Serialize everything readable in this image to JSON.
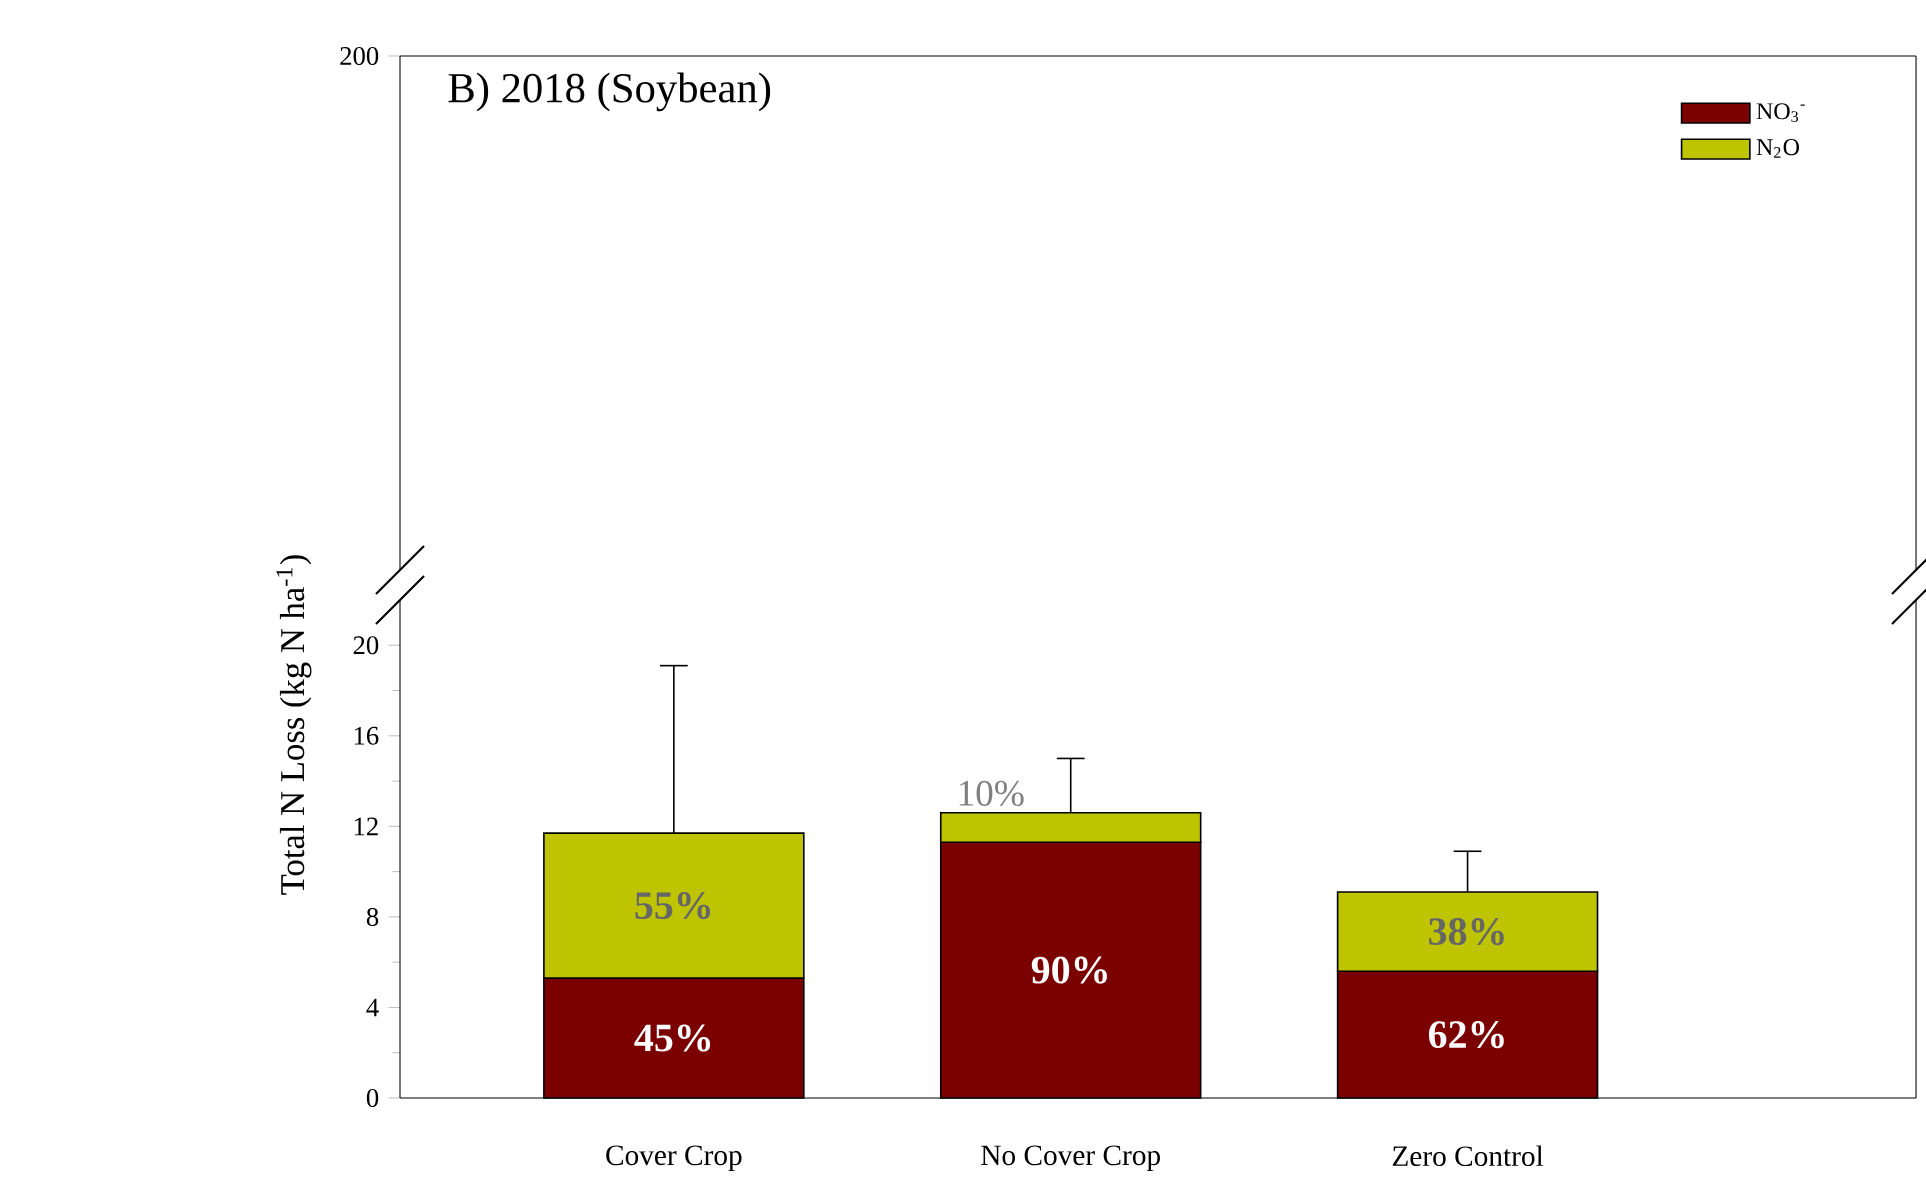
{
  "chart_data": {
    "type": "bar",
    "stacked": true,
    "title": "B) 2018 (Soybean)",
    "ylabel": "Total N Loss (kg N ha$^{-1}$)",
    "categories": [
      "Cover Crop",
      "No Cover Crop",
      "Zero Control"
    ],
    "series": [
      {
        "name": "NO$_{3}$$^{-}$",
        "color": "#7b0000",
        "values": [
          5.3,
          11.3,
          5.6
        ]
      },
      {
        "name": "N$_{2}$O",
        "color": "#bfc400",
        "values": [
          6.4,
          1.3,
          3.5
        ],
        "errors": [
          7.4,
          2.4,
          1.8
        ]
      }
    ],
    "ylim": [
      0,
      22
    ],
    "yticks": [
      0,
      4,
      8,
      12,
      16,
      20
    ],
    "legend": "top right",
    "annotations": [
      "200",
      "45%",
      "55%",
      "90%",
      "10%",
      "62%",
      "38%"
    ]
  }
}
